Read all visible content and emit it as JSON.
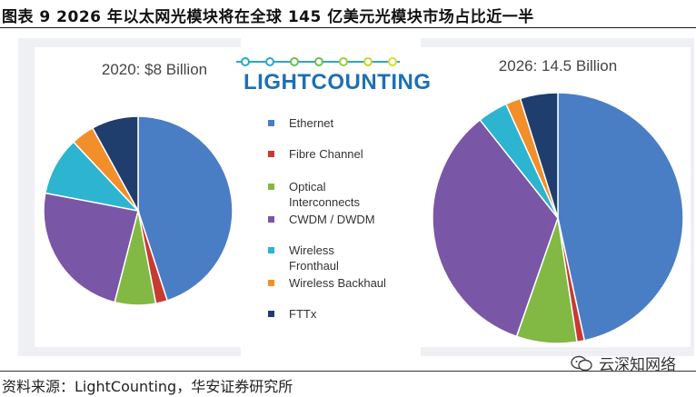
{
  "title": "图表 9 2026 年以太网光模块将在全球 145 亿美元光模块市场占比近一半",
  "source": "资料来源：LightCounting，华安证券研究所",
  "watermark": "云深知网络",
  "logo": "LIGHTCOUNTING",
  "colors": {
    "ethernet": "#4a7ec4",
    "fibre_channel": "#c73a32",
    "optical_interconnects": "#82b844",
    "cwdm_dwdm": "#7a56a6",
    "wireless_fronthaul": "#2db4d0",
    "wireless_backhaul": "#f28f2a",
    "fttx": "#1f3e6e"
  },
  "chart_data": [
    {
      "type": "pie",
      "title": "2020: $8 Billion",
      "labels": [
        "Ethernet",
        "Fibre Channel",
        "Optical Interconnects",
        "CWDM / DWDM",
        "Wireless Fronthaul",
        "Wireless Backhaul",
        "FTTx"
      ],
      "values": [
        45,
        2,
        7,
        24,
        10,
        4,
        8
      ]
    },
    {
      "type": "pie",
      "title": "2026: 14.5 Billion",
      "labels": [
        "Ethernet",
        "Fibre Channel",
        "Optical Interconnects",
        "CWDM / DWDM",
        "Wireless Fronthaul",
        "Wireless Backhaul",
        "FTTx"
      ],
      "values": [
        48,
        1,
        8,
        35,
        4,
        2,
        5
      ]
    }
  ],
  "legend": [
    {
      "lines": [
        "Ethernet"
      ],
      "color_key": "ethernet"
    },
    {
      "lines": [
        "Fibre Channel"
      ],
      "color_key": "fibre_channel"
    },
    {
      "lines": [
        "Optical",
        "Interconnects"
      ],
      "color_key": "optical_interconnects"
    },
    {
      "lines": [
        "CWDM / DWDM"
      ],
      "color_key": "cwdm_dwdm"
    },
    {
      "lines": [
        "Wireless",
        "Fronthaul"
      ],
      "color_key": "wireless_fronthaul"
    },
    {
      "lines": [
        "Wireless Backhaul"
      ],
      "color_key": "wireless_backhaul"
    },
    {
      "lines": [
        "FTTx"
      ],
      "color_key": "fttx"
    }
  ]
}
